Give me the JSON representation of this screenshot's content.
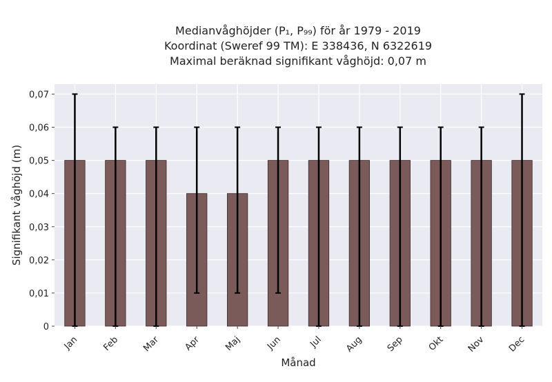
{
  "chart_data": {
    "type": "bar",
    "title_lines": [
      "Medianvåghöjder (P₁, P₉₉) för år 1979 - 2019",
      "Koordinat (Sweref 99 TM): E 338436, N 6322619",
      "Maximal beräknad signifikant våghöjd: 0,07 m"
    ],
    "xlabel": "Månad",
    "ylabel": "Signifikant våghöjd (m)",
    "categories": [
      "Jan",
      "Feb",
      "Mar",
      "Apr",
      "Maj",
      "Jun",
      "Jul",
      "Aug",
      "Sep",
      "Okt",
      "Nov",
      "Dec"
    ],
    "values": [
      0.05,
      0.05,
      0.05,
      0.04,
      0.04,
      0.05,
      0.05,
      0.05,
      0.05,
      0.05,
      0.05,
      0.05
    ],
    "err_low": [
      0,
      0,
      0,
      0.01,
      0.01,
      0.01,
      0,
      0,
      0,
      0,
      0,
      0
    ],
    "err_high": [
      0.07,
      0.06,
      0.06,
      0.06,
      0.06,
      0.06,
      0.06,
      0.06,
      0.06,
      0.06,
      0.06,
      0.07
    ],
    "ylim": [
      0,
      0.073
    ],
    "yticks": [
      0,
      0.01,
      0.02,
      0.03,
      0.04,
      0.05,
      0.06,
      0.07
    ],
    "ytick_labels": [
      "0",
      "0,01",
      "0,02",
      "0,03",
      "0,04",
      "0,05",
      "0,06",
      "0,07"
    ],
    "grid": true,
    "colors": {
      "bar": "#7b5a5a",
      "bar_edge": "#3a2a2a",
      "plot_bg": "#eaeaf2",
      "error": "#000000"
    }
  }
}
